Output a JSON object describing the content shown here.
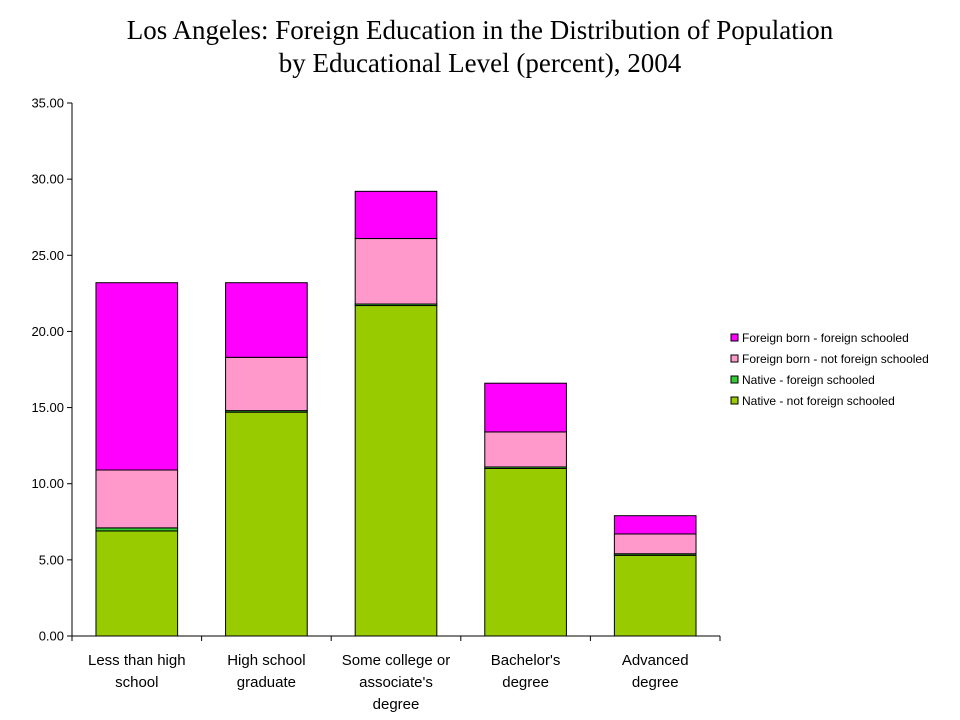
{
  "chart_data": {
    "type": "bar",
    "stacked": true,
    "title": "Los Angeles:  Foreign Education in the Distribution of Population by Educational Level (percent), 2004",
    "title_lines": [
      "Los Angeles:  Foreign Education in the Distribution of Population",
      "by Educational Level (percent), 2004"
    ],
    "xlabel": "",
    "ylabel": "",
    "ylim": [
      0,
      35
    ],
    "yticks": [
      0,
      5,
      10,
      15,
      20,
      25,
      30,
      35
    ],
    "ytick_labels": [
      "0.00",
      "5.00",
      "10.00",
      "15.00",
      "20.00",
      "25.00",
      "30.00",
      "35.00"
    ],
    "grid": false,
    "legend_position": "right",
    "categories": [
      "Less than high school",
      "High school graduate",
      "Some college or associate's degree",
      "Bachelor's degree",
      "Advanced degree"
    ],
    "category_lines": [
      [
        "Less than high",
        "school"
      ],
      [
        "High school",
        "graduate"
      ],
      [
        "Some college or",
        "associate's",
        "degree"
      ],
      [
        "Bachelor's",
        "degree"
      ],
      [
        "Advanced",
        "degree"
      ]
    ],
    "series": [
      {
        "name": "Native - not foreign schooled",
        "color": "#99cc00",
        "values": [
          6.9,
          14.7,
          21.7,
          11.0,
          5.3
        ]
      },
      {
        "name": "Native - foreign schooled",
        "color": "#33cc33",
        "values": [
          0.2,
          0.1,
          0.1,
          0.1,
          0.1
        ]
      },
      {
        "name": "Foreign born - not foreign schooled",
        "color": "#ff99cc",
        "values": [
          3.8,
          3.5,
          4.3,
          2.3,
          1.3
        ]
      },
      {
        "name": "Foreign born - foreign schooled",
        "color": "#ff00ff",
        "values": [
          12.3,
          4.9,
          3.1,
          3.2,
          1.2
        ]
      }
    ],
    "legend_order": [
      "Foreign born - foreign schooled",
      "Foreign born - not foreign schooled",
      "Native - foreign schooled",
      "Native - not foreign schooled"
    ]
  }
}
